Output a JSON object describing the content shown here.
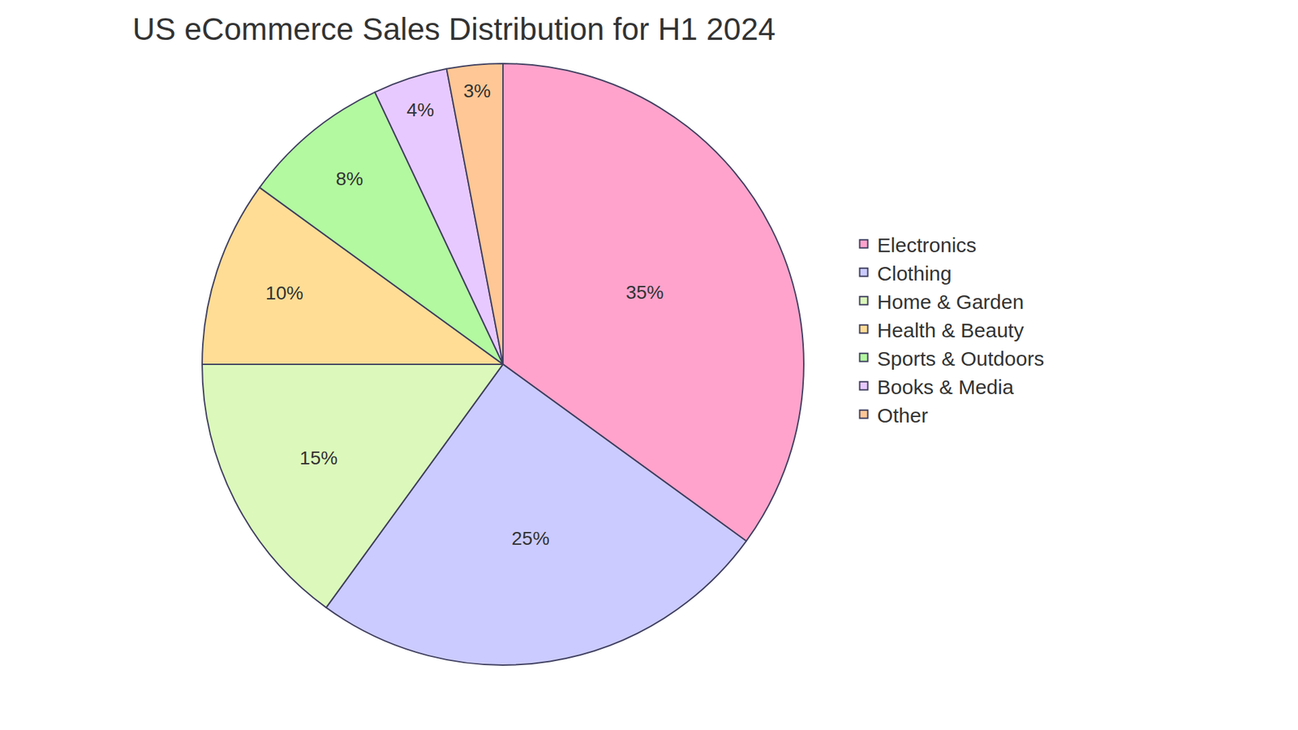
{
  "chart_data": {
    "type": "pie",
    "title": "US eCommerce Sales Distribution for H1 2024",
    "categories": [
      "Electronics",
      "Clothing",
      "Home & Garden",
      "Health & Beauty",
      "Sports & Outdoors",
      "Books & Media",
      "Other"
    ],
    "values": [
      35,
      25,
      15,
      10,
      8,
      4,
      3
    ],
    "value_labels": [
      "35%",
      "25%",
      "15%",
      "10%",
      "8%",
      "4%",
      "3%"
    ],
    "colors": [
      "#ffa3cc",
      "#cbcbff",
      "#dcf9bb",
      "#ffdd95",
      "#b3f9a0",
      "#e8c9ff",
      "#ffc795"
    ],
    "data_labels": true,
    "legend": "right"
  }
}
